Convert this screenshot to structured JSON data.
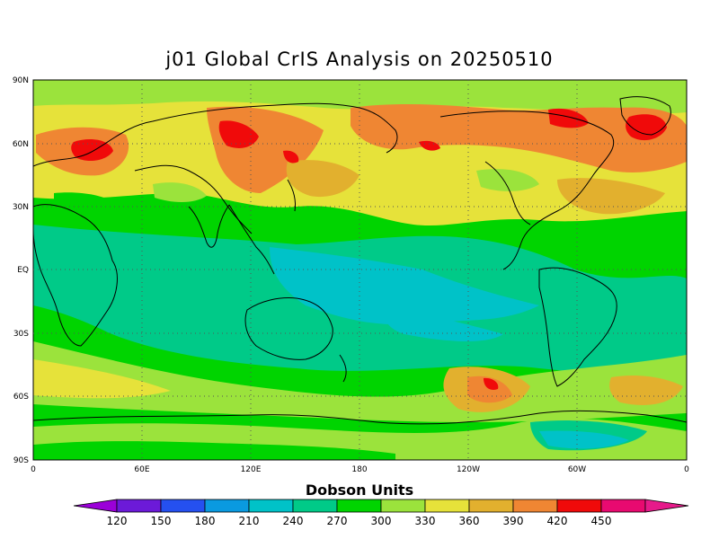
{
  "title": "j01 Global CrIS Analysis on 20250510",
  "colorbar": {
    "title": "Dobson Units",
    "ticks": [
      "120",
      "150",
      "180",
      "210",
      "240",
      "270",
      "300",
      "330",
      "360",
      "390",
      "420",
      "450"
    ],
    "colors": [
      "#9b00d8",
      "#6c1ad8",
      "#2550f0",
      "#0a9ae0",
      "#00c2c8",
      "#00ca88",
      "#00d400",
      "#9be33c",
      "#e6e23a",
      "#e2b02e",
      "#ef8633",
      "#f00a0a",
      "#e80a70",
      "#e61a8a"
    ]
  },
  "axes": {
    "lat_labels": [
      "90N",
      "60N",
      "30N",
      "EQ",
      "30S",
      "60S",
      "90S"
    ],
    "lon_labels": [
      "0",
      "60E",
      "120E",
      "180",
      "120W",
      "60W",
      "0"
    ]
  },
  "field_description_legend": {
    "background_level": "330"
  }
}
